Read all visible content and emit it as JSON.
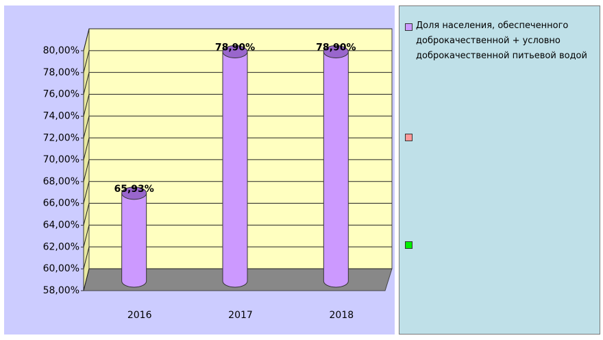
{
  "chart_data": {
    "type": "bar",
    "categories": [
      "2016",
      "2017",
      "2018"
    ],
    "series": [
      {
        "name": "Доля населения, обеспеченного доброкачественной + условно доброкачественной питьевой водой",
        "color": "#cc99ff",
        "values": [
          65.93,
          78.9,
          78.9
        ],
        "value_labels": [
          "65,93%",
          "78,90%",
          "78,90%"
        ]
      }
    ],
    "ylim": [
      58,
      80
    ],
    "yticks": [
      {
        "value": 58,
        "label": "58,00%"
      },
      {
        "value": 60,
        "label": "60,00%"
      },
      {
        "value": 62,
        "label": "62,00%"
      },
      {
        "value": 64,
        "label": "64,00%"
      },
      {
        "value": 66,
        "label": "66,00%"
      },
      {
        "value": 68,
        "label": "68,00%"
      },
      {
        "value": 70,
        "label": "70,00%"
      },
      {
        "value": 72,
        "label": "72,00%"
      },
      {
        "value": 74,
        "label": "74,00%"
      },
      {
        "value": 76,
        "label": "76,00%"
      },
      {
        "value": 78,
        "label": "78,00%"
      },
      {
        "value": 80,
        "label": "80,00%"
      }
    ],
    "grid": true,
    "legend": "right"
  }
}
